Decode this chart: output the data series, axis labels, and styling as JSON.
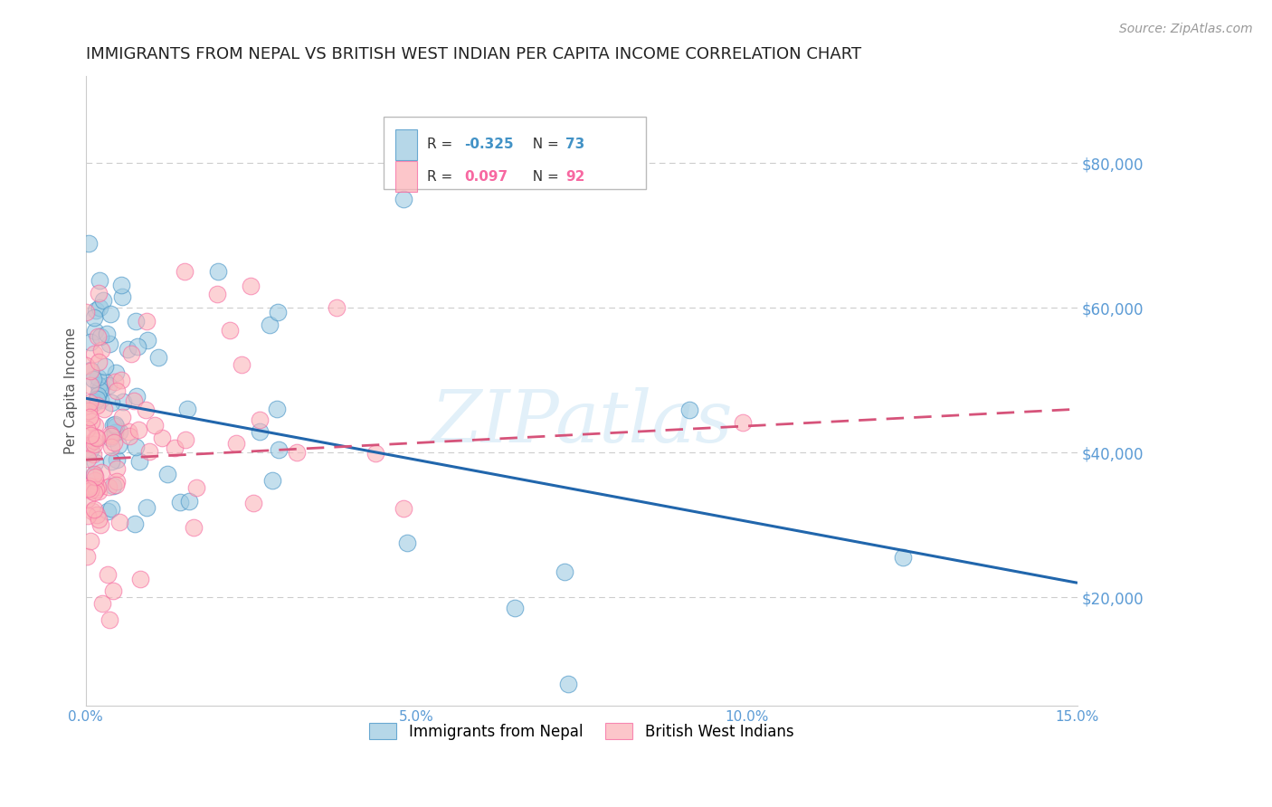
{
  "title": "IMMIGRANTS FROM NEPAL VS BRITISH WEST INDIAN PER CAPITA INCOME CORRELATION CHART",
  "source": "Source: ZipAtlas.com",
  "ylabel": "Per Capita Income",
  "xlabel_ticks": [
    "0.0%",
    "5.0%",
    "10.0%",
    "15.0%"
  ],
  "xlabel_tick_vals": [
    0.0,
    0.05,
    0.1,
    0.15
  ],
  "ylabel_ticks": [
    20000,
    40000,
    60000,
    80000
  ],
  "ylabel_labels": [
    "$20,000",
    "$40,000",
    "$60,000",
    "$80,000"
  ],
  "xlim": [
    0.0,
    0.15
  ],
  "ylim": [
    5000,
    92000
  ],
  "title_fontsize": 13,
  "source_fontsize": 10,
  "axis_label_color": "#5b9bd5",
  "background_color": "#ffffff",
  "grid_color": "#cccccc",
  "nepal_color": "#9ecae1",
  "nepal_edge_color": "#4292c6",
  "bwi_color": "#fbb4b9",
  "bwi_edge_color": "#f768a1",
  "nepal_R": -0.325,
  "nepal_N": 73,
  "bwi_R": 0.097,
  "bwi_N": 92,
  "nepal_line_color": "#2166ac",
  "bwi_line_color": "#d6537a",
  "nepal_line_x0": 0.0,
  "nepal_line_y0": 47500,
  "nepal_line_x1": 0.15,
  "nepal_line_y1": 22000,
  "bwi_line_x0": 0.0,
  "bwi_line_y0": 39000,
  "bwi_line_x1": 0.15,
  "bwi_line_y1": 46000,
  "watermark": "ZIPatlas",
  "legend_R1": "-0.325",
  "legend_N1": "73",
  "legend_R2": "0.097",
  "legend_N2": "92",
  "legend_color1": "#4292c6",
  "legend_color2": "#f768a1"
}
